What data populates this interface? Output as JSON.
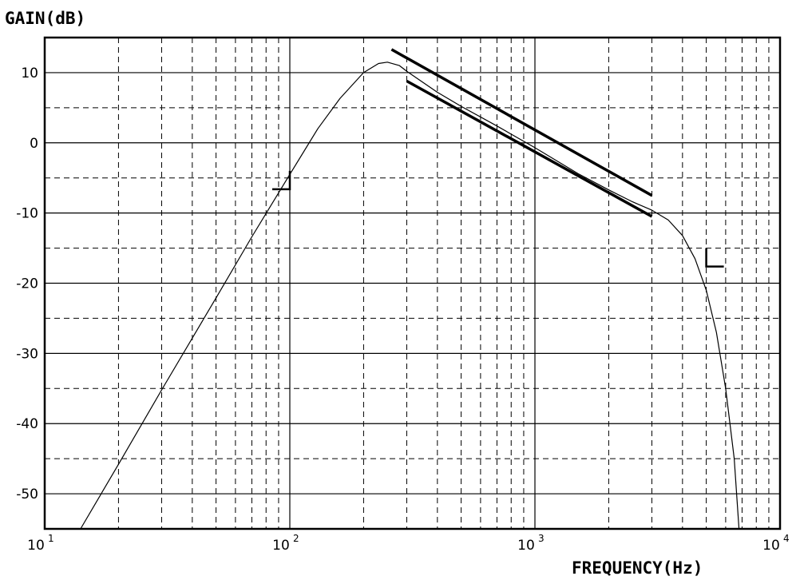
{
  "chart_data": {
    "type": "line",
    "ylabel": "GAIN(dB)",
    "xlabel": "FREQUENCY(Hz)",
    "x_scale": "log",
    "xlim": [
      10,
      10000
    ],
    "ylim": [
      -55,
      15
    ],
    "x_ticks": [
      {
        "value": 10,
        "base": "10",
        "exp": "1"
      },
      {
        "value": 100,
        "base": "10",
        "exp": "2"
      },
      {
        "value": 1000,
        "base": "10",
        "exp": "3"
      },
      {
        "value": 10000,
        "base": "10",
        "exp": "4"
      }
    ],
    "y_ticks": [
      10,
      0,
      -10,
      -20,
      -30,
      -40,
      -50
    ],
    "y_ticks_minor": [
      5,
      -5,
      -15,
      -25,
      -35,
      -45
    ],
    "grid": true,
    "series": [
      {
        "style": "thin",
        "points": [
          [
            14,
            -55
          ],
          [
            20,
            -45.8
          ],
          [
            30,
            -35.2
          ],
          [
            50,
            -22.1
          ],
          [
            70,
            -13.4
          ],
          [
            100,
            -4.5
          ],
          [
            130,
            2.0
          ],
          [
            160,
            6.3
          ],
          [
            200,
            10.0
          ],
          [
            230,
            11.3
          ],
          [
            250,
            11.5
          ],
          [
            280,
            11.0
          ],
          [
            300,
            10.2
          ],
          [
            400,
            7.2
          ],
          [
            500,
            5.2
          ],
          [
            700,
            2.4
          ],
          [
            1000,
            -0.7
          ],
          [
            1500,
            -4.4
          ],
          [
            2000,
            -6.7
          ],
          [
            2500,
            -8.4
          ],
          [
            3000,
            -9.6
          ],
          [
            3500,
            -11.0
          ],
          [
            4000,
            -13.2
          ],
          [
            4500,
            -16.5
          ],
          [
            5000,
            -21.0
          ],
          [
            5500,
            -27.0
          ],
          [
            6000,
            -35.0
          ],
          [
            6500,
            -45.0
          ],
          [
            6800,
            -55.0
          ]
        ]
      },
      {
        "style": "thick",
        "points": [
          [
            260,
            13.3
          ],
          [
            3000,
            -7.5
          ]
        ]
      },
      {
        "style": "thick",
        "points": [
          [
            300,
            8.8
          ],
          [
            3000,
            -10.5
          ]
        ]
      }
    ],
    "annotations": [
      {
        "shape": "corner-right",
        "at": [
          100,
          -4
        ]
      },
      {
        "shape": "corner-left",
        "at": [
          5000,
          -15
        ]
      }
    ]
  }
}
